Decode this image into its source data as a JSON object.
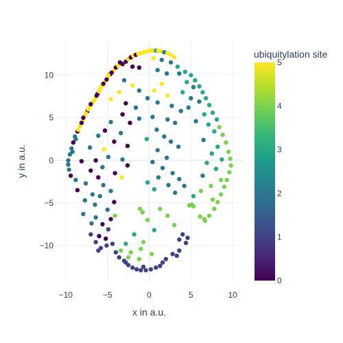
{
  "chart_data": {
    "type": "scatter",
    "title": "",
    "xlabel": "x in a.u.",
    "ylabel": "y in a.u.",
    "xlim": [
      -11.3,
      11.3
    ],
    "ylim": [
      -14.2,
      14.0
    ],
    "xticks": [
      -10,
      -5,
      0,
      5,
      10
    ],
    "yticks": [
      -10,
      -5,
      0,
      5,
      10
    ],
    "grid": true,
    "marker_size": 6,
    "colorbar": {
      "title": "ubiquitylation site",
      "min": 0,
      "max": 5,
      "ticks": [
        0,
        1,
        2,
        3,
        4,
        5
      ],
      "colorscale": [
        "#440154",
        "#482878",
        "#3e4989",
        "#31688e",
        "#26828e",
        "#1f9e89",
        "#35b779",
        "#6ece58",
        "#b5de2b",
        "#fde725"
      ]
    },
    "points": [
      [
        -3.2,
        11.3,
        0
      ],
      [
        -2.8,
        11.6,
        0
      ],
      [
        -2.5,
        11.9,
        5
      ],
      [
        -2.2,
        12.1,
        0
      ],
      [
        -1.9,
        12.3,
        5
      ],
      [
        -1.6,
        12.4,
        0
      ],
      [
        -1.3,
        12.5,
        5
      ],
      [
        -1.0,
        12.6,
        5
      ],
      [
        -0.6,
        12.7,
        5
      ],
      [
        -0.3,
        12.8,
        5
      ],
      [
        0.1,
        12.9,
        5
      ],
      [
        0.4,
        12.9,
        5
      ],
      [
        0.8,
        12.9,
        3
      ],
      [
        1.1,
        12.9,
        5
      ],
      [
        1.4,
        12.8,
        5
      ],
      [
        1.8,
        12.7,
        2
      ],
      [
        2.2,
        12.6,
        5
      ],
      [
        2.6,
        12.4,
        5
      ],
      [
        3.0,
        12.1,
        5
      ],
      [
        -4.0,
        10.9,
        0
      ],
      [
        -4.3,
        10.5,
        5
      ],
      [
        -4.7,
        10.1,
        0
      ],
      [
        -5.0,
        9.7,
        5
      ],
      [
        -5.3,
        9.2,
        5
      ],
      [
        -5.6,
        8.8,
        5
      ],
      [
        -5.9,
        8.3,
        5
      ],
      [
        -6.2,
        7.8,
        0
      ],
      [
        -6.5,
        7.3,
        5
      ],
      [
        -6.8,
        6.8,
        5
      ],
      [
        -7.1,
        6.3,
        5
      ],
      [
        -7.4,
        5.8,
        0
      ],
      [
        -7.7,
        5.2,
        5
      ],
      [
        -8.0,
        4.6,
        5
      ],
      [
        -8.3,
        4.0,
        5
      ],
      [
        -8.6,
        3.4,
        0
      ],
      [
        -8.9,
        2.8,
        2
      ],
      [
        -9.1,
        2.1,
        0
      ],
      [
        -9.3,
        1.4,
        2
      ],
      [
        -9.5,
        0.7,
        2
      ],
      [
        -9.7,
        0.0,
        2
      ],
      [
        -9.7,
        -0.5,
        2
      ],
      [
        -9.6,
        -1.1,
        2
      ],
      [
        -9.4,
        -1.8,
        0
      ],
      [
        -3.7,
        11.1,
        5
      ],
      [
        -4.5,
        10.3,
        0
      ],
      [
        -5.1,
        9.5,
        0
      ],
      [
        -5.8,
        8.6,
        5
      ],
      [
        -6.3,
        7.6,
        0
      ],
      [
        -7.0,
        6.6,
        0
      ],
      [
        -7.6,
        5.5,
        5
      ],
      [
        -8.1,
        4.4,
        0
      ],
      [
        -8.5,
        3.6,
        5
      ],
      [
        -8.8,
        2.5,
        2
      ],
      [
        -9.2,
        1.0,
        2
      ],
      [
        -5.5,
        9.0,
        0
      ],
      [
        -6.0,
        8.1,
        5
      ],
      [
        -6.6,
        7.0,
        5
      ],
      [
        -7.3,
        6.0,
        5
      ],
      [
        -7.9,
        5.0,
        0
      ],
      [
        -4.9,
        10.0,
        5
      ],
      [
        -3.5,
        11.5,
        0
      ],
      [
        -2.0,
        11.0,
        0
      ],
      [
        -1.2,
        10.9,
        0
      ],
      [
        0.5,
        12.0,
        5
      ],
      [
        1.5,
        11.8,
        2
      ],
      [
        2.6,
        11.5,
        2
      ],
      [
        3.4,
        11.0,
        3
      ],
      [
        4.3,
        10.4,
        3
      ],
      [
        5.0,
        10.0,
        3
      ],
      [
        5.5,
        9.4,
        3
      ],
      [
        6.0,
        8.7,
        3
      ],
      [
        6.4,
        8.0,
        3
      ],
      [
        6.8,
        7.3,
        3
      ],
      [
        7.2,
        6.5,
        3
      ],
      [
        7.6,
        5.6,
        3
      ],
      [
        8.1,
        4.8,
        3
      ],
      [
        8.4,
        3.9,
        4
      ],
      [
        8.8,
        3.0,
        4
      ],
      [
        9.2,
        2.1,
        4
      ],
      [
        9.5,
        1.0,
        4
      ],
      [
        9.7,
        0.2,
        4
      ],
      [
        9.8,
        -0.6,
        4
      ],
      [
        9.6,
        -1.4,
        4
      ],
      [
        9.3,
        -2.3,
        4
      ],
      [
        9.0,
        -3.1,
        4
      ],
      [
        8.6,
        -4.0,
        4
      ],
      [
        8.2,
        -4.9,
        4
      ],
      [
        7.8,
        -5.7,
        4
      ],
      [
        7.2,
        -6.5,
        4
      ],
      [
        6.7,
        -7.1,
        4
      ],
      [
        3.6,
        10.2,
        2
      ],
      [
        4.5,
        9.2,
        3
      ],
      [
        5.3,
        8.6,
        2
      ],
      [
        4.0,
        8.0,
        3
      ],
      [
        5.0,
        7.3,
        2
      ],
      [
        6.0,
        6.9,
        2
      ],
      [
        4.7,
        6.2,
        2
      ],
      [
        6.6,
        5.4,
        3
      ],
      [
        5.6,
        4.6,
        2
      ],
      [
        7.1,
        4.2,
        3
      ],
      [
        7.8,
        3.4,
        3
      ],
      [
        6.5,
        2.4,
        2
      ],
      [
        8.2,
        1.6,
        3
      ],
      [
        7.5,
        0.8,
        3
      ],
      [
        8.7,
        0.1,
        3
      ],
      [
        6.9,
        -0.3,
        3
      ],
      [
        8.0,
        -1.0,
        3
      ],
      [
        6.4,
        -1.8,
        2
      ],
      [
        8.6,
        -2.3,
        4
      ],
      [
        7.4,
        -3.0,
        4
      ],
      [
        6.2,
        -3.6,
        4
      ],
      [
        5.3,
        -4.2,
        3
      ],
      [
        7.6,
        -4.6,
        4
      ],
      [
        5.1,
        -5.2,
        4
      ],
      [
        5.3,
        -5.4,
        4
      ],
      [
        4.8,
        -5.3,
        4
      ],
      [
        6.1,
        -6.6,
        4
      ],
      [
        6.6,
        -6.9,
        4
      ],
      [
        1.0,
        10.6,
        2
      ],
      [
        2.1,
        10.2,
        2
      ],
      [
        1.5,
        9.0,
        5
      ],
      [
        0.6,
        8.2,
        5
      ],
      [
        2.2,
        7.6,
        5
      ],
      [
        -0.2,
        7.3,
        2
      ],
      [
        1.0,
        6.8,
        2
      ],
      [
        2.7,
        6.4,
        2
      ],
      [
        3.8,
        5.8,
        2
      ],
      [
        0.4,
        5.1,
        2
      ],
      [
        2.2,
        4.8,
        2
      ],
      [
        3.1,
        4.4,
        2
      ],
      [
        -1.2,
        4.9,
        2
      ],
      [
        0.9,
        3.6,
        2
      ],
      [
        1.8,
        2.8,
        2
      ],
      [
        -0.3,
        2.5,
        3
      ],
      [
        2.6,
        2.2,
        2
      ],
      [
        3.5,
        1.6,
        2
      ],
      [
        1.0,
        1.2,
        2
      ],
      [
        2.1,
        0.3,
        2
      ],
      [
        0.4,
        -0.2,
        2
      ],
      [
        1.6,
        -0.9,
        2
      ],
      [
        2.8,
        -1.5,
        2
      ],
      [
        3.6,
        -2.2,
        2
      ],
      [
        1.1,
        -2.0,
        2
      ],
      [
        -0.2,
        -2.6,
        3
      ],
      [
        2.3,
        -2.9,
        2
      ],
      [
        3.1,
        -3.8,
        2
      ],
      [
        4.2,
        -3.0,
        2
      ],
      [
        0.6,
        -3.4,
        3
      ],
      [
        -3.0,
        9.4,
        2
      ],
      [
        -2.0,
        8.8,
        5
      ],
      [
        -3.6,
        8.0,
        5
      ],
      [
        -1.2,
        8.2,
        2
      ],
      [
        -4.6,
        7.2,
        5
      ],
      [
        -2.8,
        6.7,
        0
      ],
      [
        -1.6,
        6.2,
        2
      ],
      [
        -3.2,
        5.4,
        0
      ],
      [
        -4.6,
        4.5,
        2
      ],
      [
        -2.3,
        4.4,
        0
      ],
      [
        -5.3,
        3.5,
        0
      ],
      [
        -3.4,
        3.2,
        2
      ],
      [
        -6.1,
        2.9,
        2
      ],
      [
        -4.2,
        2.2,
        0
      ],
      [
        -2.6,
        1.7,
        0
      ],
      [
        -5.4,
        1.3,
        5
      ],
      [
        -7.1,
        1.5,
        2
      ],
      [
        -4.9,
        0.4,
        2
      ],
      [
        -3.2,
        0.1,
        2
      ],
      [
        -6.4,
        0.0,
        0
      ],
      [
        -8.1,
        -0.1,
        0
      ],
      [
        -5.6,
        -0.8,
        2
      ],
      [
        -2.6,
        -0.6,
        0
      ],
      [
        -7.0,
        -1.2,
        0
      ],
      [
        -4.1,
        -1.5,
        0
      ],
      [
        -8.8,
        -2.3,
        2
      ],
      [
        -6.1,
        -2.0,
        0
      ],
      [
        -3.3,
        -2.0,
        5
      ],
      [
        -7.6,
        -2.7,
        2
      ],
      [
        -5.5,
        -2.9,
        2
      ],
      [
        -8.6,
        -3.5,
        0
      ],
      [
        -6.8,
        -4.0,
        2
      ],
      [
        -4.6,
        -3.6,
        2
      ],
      [
        -7.7,
        -4.7,
        2
      ],
      [
        -5.9,
        -4.2,
        2
      ],
      [
        -4.2,
        -4.9,
        0
      ],
      [
        -6.5,
        -5.2,
        2
      ],
      [
        -5.0,
        -5.8,
        2
      ],
      [
        -7.9,
        -6.3,
        2
      ],
      [
        -6.4,
        -6.7,
        2
      ],
      [
        -4.6,
        -6.9,
        0
      ],
      [
        -5.6,
        -7.5,
        0
      ],
      [
        -6.9,
        -7.4,
        2
      ],
      [
        -4.9,
        -8.1,
        1
      ],
      [
        -7.0,
        -8.7,
        1
      ],
      [
        -6.0,
        -8.9,
        0
      ],
      [
        -5.2,
        -9.2,
        0
      ],
      [
        -6.4,
        -9.6,
        1
      ],
      [
        -5.8,
        -10.3,
        1
      ],
      [
        -5.1,
        -10.0,
        1
      ],
      [
        -4.4,
        -9.8,
        1
      ],
      [
        -6.1,
        -10.6,
        1
      ],
      [
        -4.0,
        -10.8,
        1
      ],
      [
        -3.6,
        -11.4,
        1
      ],
      [
        -3.0,
        -11.8,
        1
      ],
      [
        -2.5,
        -12.3,
        1
      ],
      [
        -2.0,
        -12.6,
        1
      ],
      [
        -1.5,
        -12.8,
        1
      ],
      [
        -1.0,
        -12.9,
        1
      ],
      [
        -0.4,
        -12.9,
        1
      ],
      [
        0.2,
        -12.8,
        1
      ],
      [
        0.8,
        -12.6,
        1
      ],
      [
        1.3,
        -12.4,
        1
      ],
      [
        2.0,
        -11.6,
        1
      ],
      [
        2.8,
        -11.0,
        1
      ],
      [
        3.6,
        -10.6,
        1
      ],
      [
        4.4,
        -9.7,
        1
      ],
      [
        -2.8,
        -12.0,
        1
      ],
      [
        -0.7,
        -12.5,
        1
      ],
      [
        1.6,
        -12.0,
        1
      ],
      [
        3.3,
        -11.2,
        1
      ],
      [
        -2.2,
        -10.8,
        4
      ],
      [
        -1.2,
        -11.6,
        4
      ],
      [
        0.3,
        -11.0,
        4
      ],
      [
        -0.7,
        -9.6,
        4
      ],
      [
        -1.8,
        -8.7,
        3
      ],
      [
        -2.8,
        -9.8,
        3
      ],
      [
        -3.4,
        -10.6,
        4
      ],
      [
        -2.5,
        -11.4,
        4
      ],
      [
        -1.0,
        -10.4,
        4
      ],
      [
        -0.2,
        -7.0,
        4
      ],
      [
        -0.8,
        -6.1,
        4
      ],
      [
        1.3,
        -5.7,
        4
      ],
      [
        2.2,
        -6.5,
        4
      ],
      [
        3.0,
        -7.6,
        4
      ],
      [
        4.0,
        -8.7,
        1
      ],
      [
        3.6,
        -9.3,
        1
      ],
      [
        4.6,
        -9.1,
        1
      ],
      [
        0.6,
        -8.2,
        3
      ],
      [
        -1.1,
        -5.7,
        4
      ],
      [
        -4.1,
        -6.5,
        4
      ]
    ]
  }
}
